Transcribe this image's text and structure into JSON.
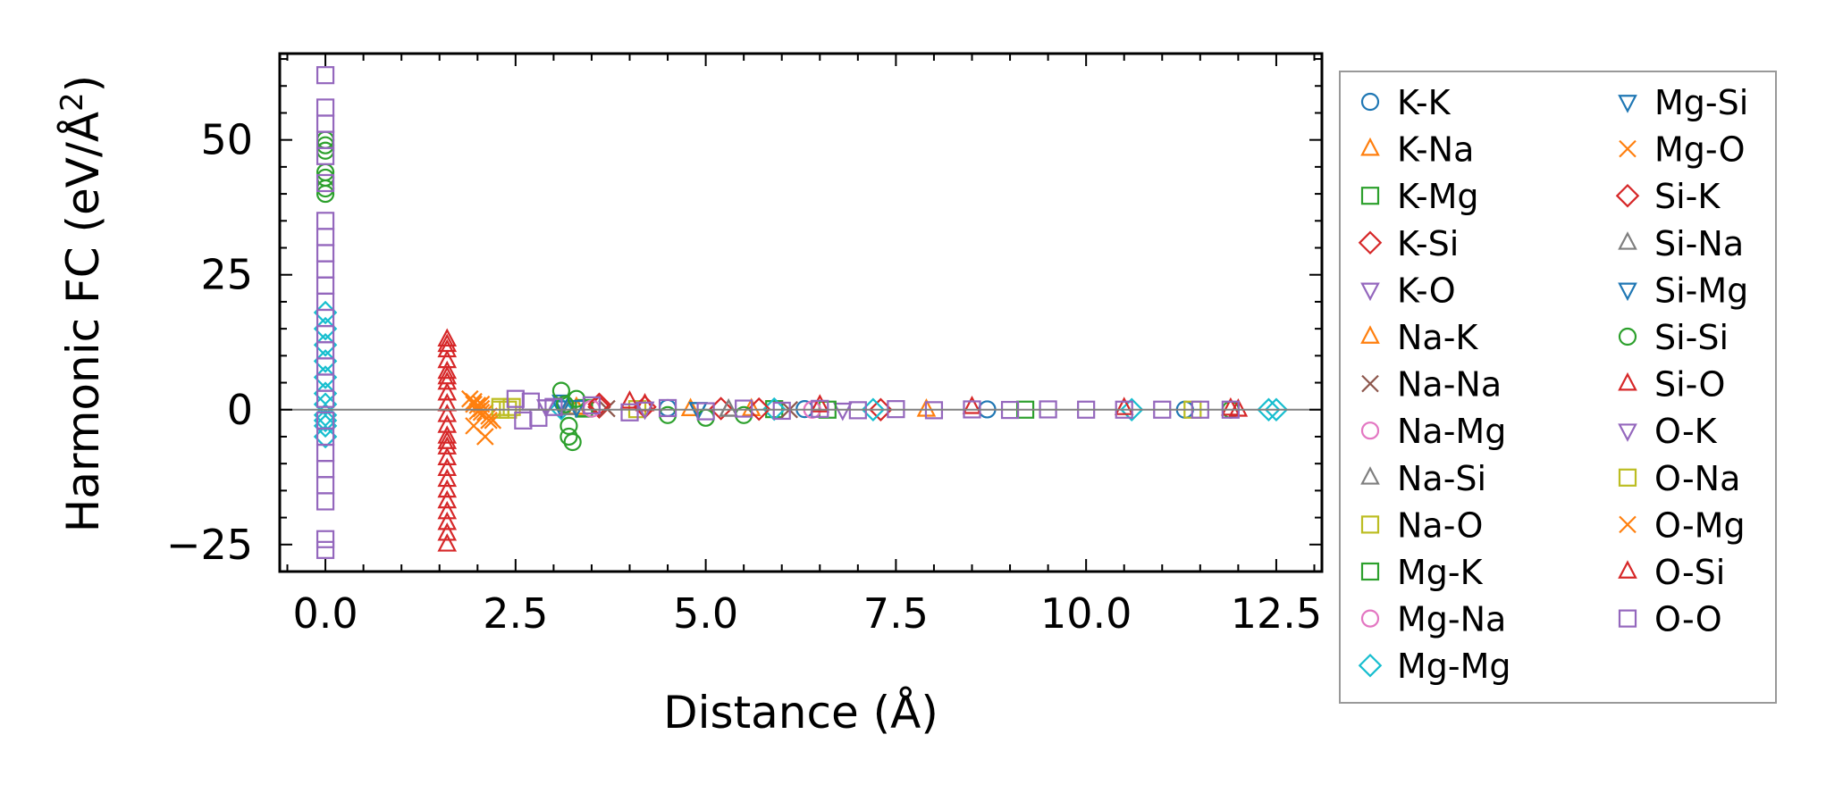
{
  "chart_data": {
    "type": "scatter",
    "title": "",
    "xlabel": "Distance (Å)",
    "ylabel_main": "Harmonic FC (eV/Å",
    "ylabel_sup": "2",
    "ylabel_close": ")",
    "xlim": [
      -0.6,
      13.1
    ],
    "ylim": [
      -30,
      66
    ],
    "xticks": [
      0.0,
      2.5,
      5.0,
      7.5,
      10.0,
      12.5
    ],
    "xtick_labels": [
      "0.0",
      "2.5",
      "5.0",
      "7.5",
      "10.0",
      "12.5"
    ],
    "yticks": [
      -25,
      0,
      25,
      50
    ],
    "ytick_labels": [
      "−25",
      "0",
      "25",
      "50"
    ],
    "grid": false,
    "zero_line": true,
    "legend_placement": "outside-right",
    "series": [
      {
        "name": "K-K",
        "marker": "circle",
        "color": "#1f77b4",
        "x": [
          4.5,
          6.3,
          8.7,
          11.3
        ],
        "y": [
          0.3,
          0.1,
          0.05,
          0.0
        ]
      },
      {
        "name": "K-Na",
        "marker": "triangle-up",
        "color": "#ff7f0e",
        "x": [
          3.3,
          4.8,
          7.9
        ],
        "y": [
          0.4,
          0.1,
          0.0
        ]
      },
      {
        "name": "K-Mg",
        "marker": "square",
        "color": "#2ca02c",
        "x": [
          3.4,
          5.9,
          9.2
        ],
        "y": [
          0.3,
          0.1,
          0.0
        ]
      },
      {
        "name": "K-Si",
        "marker": "diamond",
        "color": "#d62728",
        "x": [
          3.6,
          5.2,
          7.3
        ],
        "y": [
          0.5,
          0.2,
          0.0
        ]
      },
      {
        "name": "K-O",
        "marker": "triangle-down",
        "color": "#9467bd",
        "x": [
          2.9,
          4.2,
          6.8
        ],
        "y": [
          0.6,
          0.2,
          0.0
        ]
      },
      {
        "name": "Na-K",
        "marker": "triangle-up",
        "color": "#ff7f0e",
        "x": [
          3.3,
          5.6
        ],
        "y": [
          0.3,
          0.1
        ]
      },
      {
        "name": "Na-Na",
        "marker": "x",
        "color": "#8c564b",
        "x": [
          3.7,
          6.1
        ],
        "y": [
          0.2,
          0.0
        ]
      },
      {
        "name": "Na-Mg",
        "marker": "circle",
        "color": "#e377c2",
        "x": [
          3.5,
          6.4
        ],
        "y": [
          0.2,
          0.0
        ]
      },
      {
        "name": "Na-Si",
        "marker": "triangle-up",
        "color": "#7f7f7f",
        "x": [
          3.2,
          5.3
        ],
        "y": [
          0.3,
          0.0
        ]
      },
      {
        "name": "Na-O",
        "marker": "square",
        "color": "#bcbd22",
        "x": [
          2.3,
          2.45,
          4.1
        ],
        "y": [
          0.0,
          0.5,
          0.1
        ]
      },
      {
        "name": "Mg-K",
        "marker": "square",
        "color": "#2ca02c",
        "x": [
          3.4,
          6.6
        ],
        "y": [
          0.2,
          0.0
        ]
      },
      {
        "name": "Mg-Na",
        "marker": "circle",
        "color": "#e377c2",
        "x": [
          3.5,
          6.4
        ],
        "y": [
          0.2,
          0.0
        ]
      },
      {
        "name": "Mg-Mg",
        "marker": "diamond",
        "color": "#17becf",
        "x": [
          0.0,
          0.0,
          0.0,
          0.0,
          0.0,
          0.0,
          0.0,
          0.0,
          0.0,
          0.0,
          0.0,
          3.1,
          5.9,
          7.2,
          10.6,
          12.4,
          12.5
        ],
        "y": [
          18,
          15,
          12,
          9,
          6,
          3,
          1,
          -1,
          -2,
          -3,
          -5,
          0.2,
          0.1,
          0.0,
          0.0,
          0.0,
          0.0
        ]
      },
      {
        "name": "Mg-Si",
        "marker": "triangle-down",
        "color": "#1f77b4",
        "x": [
          3.1,
          4.9
        ],
        "y": [
          0.4,
          0.1
        ]
      },
      {
        "name": "Mg-O",
        "marker": "x",
        "color": "#ff7f0e",
        "x": [
          1.9,
          1.95,
          2.0,
          2.05,
          2.1,
          2.15,
          2.2,
          1.95,
          2.05,
          2.1,
          2.0
        ],
        "y": [
          2.0,
          1.5,
          0.8,
          0.2,
          -0.5,
          -1.2,
          -2.0,
          -3.0,
          1.0,
          -5.0,
          -0.3
        ]
      },
      {
        "name": "Si-K",
        "marker": "diamond",
        "color": "#d62728",
        "x": [
          3.6,
          4.2,
          5.7
        ],
        "y": [
          1.0,
          0.5,
          0.1
        ]
      },
      {
        "name": "Si-Na",
        "marker": "triangle-up",
        "color": "#7f7f7f",
        "x": [
          3.2,
          5.3
        ],
        "y": [
          0.3,
          0.0
        ]
      },
      {
        "name": "Si-Mg",
        "marker": "triangle-down",
        "color": "#1f77b4",
        "x": [
          3.1,
          3.3,
          4.9
        ],
        "y": [
          1.5,
          0.5,
          0.1
        ]
      },
      {
        "name": "Si-Si",
        "marker": "circle",
        "color": "#2ca02c",
        "x": [
          0.0,
          0.0,
          0.0,
          0.0,
          0.0,
          0.0,
          0.0,
          3.1,
          3.15,
          3.2,
          3.2,
          3.25,
          3.3,
          4.5,
          5.0,
          5.5,
          11.9
        ],
        "y": [
          50,
          49,
          48,
          44,
          43,
          41,
          40,
          3.5,
          1.0,
          -3.0,
          -5.0,
          -6.0,
          2.0,
          -1.0,
          -1.5,
          -1.0,
          0.0
        ]
      },
      {
        "name": "Si-O",
        "marker": "triangle-up",
        "color": "#d62728",
        "x": [
          1.6,
          1.6,
          1.6,
          1.6,
          1.6,
          1.6,
          1.6,
          1.6,
          1.6,
          1.6,
          1.6,
          1.6,
          1.6,
          1.6,
          1.6,
          1.6,
          1.6,
          1.6,
          1.6,
          4.0,
          4.2,
          6.5,
          8.5,
          10.5,
          11.9,
          12.0
        ],
        "y": [
          13,
          11,
          9,
          7,
          5,
          3,
          1,
          -1,
          -3,
          -5,
          -7,
          -9,
          -11,
          -13,
          -15,
          -17,
          -19,
          -21,
          -25,
          1.5,
          1.0,
          0.8,
          0.5,
          0.3,
          0.2,
          0.0
        ]
      },
      {
        "name": "O-K",
        "marker": "triangle-down",
        "color": "#9467bd",
        "x": [
          2.9,
          4.2
        ],
        "y": [
          0.6,
          0.2
        ]
      },
      {
        "name": "O-Na",
        "marker": "square",
        "color": "#bcbd22",
        "x": [
          2.3,
          2.4,
          11.4
        ],
        "y": [
          0.5,
          0.0,
          0.0
        ]
      },
      {
        "name": "O-Mg",
        "marker": "x",
        "color": "#ff7f0e",
        "x": [
          1.95,
          2.05,
          2.15
        ],
        "y": [
          1.0,
          -0.5,
          -2.0
        ]
      },
      {
        "name": "O-Si",
        "marker": "triangle-up",
        "color": "#d62728",
        "x": [
          1.6,
          1.6,
          1.6,
          1.6
        ],
        "y": [
          12,
          6,
          -6,
          -23
        ]
      },
      {
        "name": "O-O",
        "marker": "square",
        "color": "#9467bd",
        "x": [
          0.0,
          0.0,
          0.0,
          0.0,
          0.0,
          0.0,
          0.0,
          0.0,
          0.0,
          0.0,
          0.0,
          0.0,
          0.0,
          0.0,
          0.0,
          0.0,
          0.0,
          0.0,
          0.0,
          0.0,
          0.0,
          0.0,
          0.0,
          0.0,
          0.0,
          0.0,
          2.5,
          2.6,
          2.7,
          2.8,
          3.0,
          3.5,
          4.0,
          4.5,
          5.0,
          5.5,
          6.0,
          6.5,
          7.0,
          7.5,
          8.0,
          8.5,
          9.0,
          9.5,
          10.0,
          10.5,
          11.0,
          11.5,
          11.9
        ],
        "y": [
          62,
          56,
          53,
          50,
          47,
          42,
          35,
          32,
          29,
          26,
          23,
          20,
          17,
          14,
          11,
          8,
          5,
          2,
          -2,
          -5,
          -8,
          -11,
          -14,
          -17,
          -24,
          -26,
          2.0,
          -2.0,
          1.5,
          -1.5,
          0.5,
          0.8,
          -0.5,
          0.3,
          -0.3,
          0.2,
          -0.2,
          0.15,
          -0.1,
          0.1,
          -0.1,
          0.05,
          -0.05,
          0.05,
          0.0,
          0.0,
          0.0,
          0.0,
          0.0
        ]
      }
    ]
  }
}
